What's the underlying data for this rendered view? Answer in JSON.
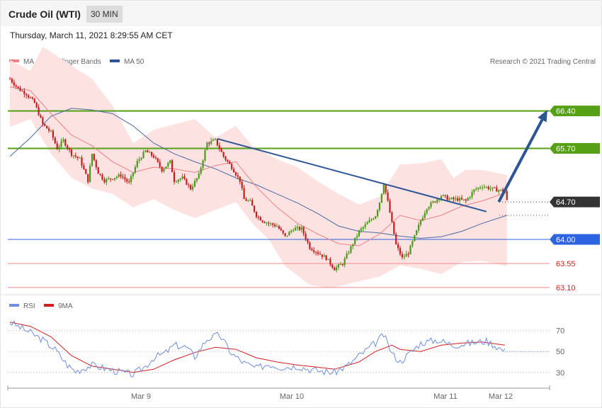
{
  "header": {
    "title": "Crude Oil (WTI)",
    "timeframe": "30 MIN",
    "datetime": "Thursday, March 11, 2021 8:29:55 AM CET"
  },
  "legend": {
    "ma20": "MA 20 + Bollinger Bands",
    "ma50": "MA 50",
    "copyright": "Research © 2021 Trading Central",
    "rsi": "RSI",
    "rsi_ma": "9MA"
  },
  "colors": {
    "up": "#4a9a1a",
    "down": "#c21e1e",
    "band": "#fde2e2",
    "ma20": "#f08080",
    "ma50": "#4a6aa0",
    "trend": "#2e5593",
    "resistance": "#55a014",
    "support": "#2b63e0",
    "weak_support": "#f08a8a",
    "pivot": "#333333",
    "rsi": "#6f8ee0",
    "rsi_ma": "#d21e1e"
  },
  "chart_data": [
    {
      "type": "candlestick",
      "ylim": [
        62.98,
        67.68
      ],
      "x_ticks": [
        "Mar 9",
        "Mar 10",
        "Mar 11",
        "Mar 12"
      ],
      "close_path": [
        [
          0,
          67.0
        ],
        [
          4,
          66.82
        ],
        [
          8,
          66.72
        ],
        [
          12,
          66.55
        ],
        [
          16,
          66.15
        ],
        [
          20,
          66.0
        ],
        [
          23,
          65.7
        ],
        [
          26,
          65.85
        ],
        [
          30,
          65.6
        ],
        [
          34,
          65.5
        ],
        [
          38,
          65.1
        ],
        [
          40,
          65.6
        ],
        [
          43,
          65.25
        ],
        [
          46,
          65.1
        ],
        [
          50,
          65.15
        ],
        [
          54,
          65.2
        ],
        [
          58,
          65.05
        ],
        [
          62,
          65.45
        ],
        [
          66,
          65.65
        ],
        [
          70,
          65.55
        ],
        [
          74,
          65.3
        ],
        [
          78,
          65.45
        ],
        [
          80,
          65.1
        ],
        [
          84,
          65.15
        ],
        [
          88,
          64.95
        ],
        [
          92,
          65.2
        ],
        [
          96,
          65.8
        ],
        [
          100,
          65.85
        ],
        [
          104,
          65.55
        ],
        [
          108,
          65.35
        ],
        [
          112,
          65.1
        ],
        [
          114,
          64.75
        ],
        [
          117,
          64.7
        ],
        [
          120,
          64.45
        ],
        [
          123,
          64.35
        ],
        [
          126,
          64.3
        ],
        [
          130,
          64.25
        ],
        [
          134,
          64.05
        ],
        [
          138,
          64.2
        ],
        [
          142,
          64.2
        ],
        [
          146,
          63.85
        ],
        [
          150,
          63.75
        ],
        [
          154,
          63.65
        ],
        [
          158,
          63.45
        ],
        [
          162,
          63.55
        ],
        [
          166,
          63.85
        ],
        [
          170,
          64.15
        ],
        [
          174,
          64.3
        ],
        [
          178,
          64.45
        ],
        [
          180,
          64.7
        ],
        [
          182,
          65.05
        ],
        [
          184,
          64.7
        ],
        [
          186,
          64.3
        ],
        [
          188,
          63.9
        ],
        [
          191,
          63.65
        ],
        [
          194,
          63.75
        ],
        [
          196,
          63.95
        ],
        [
          200,
          64.35
        ],
        [
          203,
          64.6
        ],
        [
          207,
          64.72
        ],
        [
          210,
          64.82
        ],
        [
          214,
          64.75
        ],
        [
          218,
          64.75
        ],
        [
          222,
          64.72
        ],
        [
          226,
          64.92
        ],
        [
          230,
          65.0
        ],
        [
          234,
          64.95
        ],
        [
          238,
          64.92
        ],
        [
          241,
          64.9
        ],
        [
          242,
          64.72
        ]
      ],
      "ma20_path": [
        [
          0,
          66.85
        ],
        [
          10,
          66.78
        ],
        [
          20,
          66.35
        ],
        [
          30,
          65.95
        ],
        [
          40,
          65.75
        ],
        [
          50,
          65.45
        ],
        [
          60,
          65.25
        ],
        [
          70,
          65.35
        ],
        [
          80,
          65.32
        ],
        [
          90,
          65.25
        ],
        [
          100,
          65.38
        ],
        [
          110,
          65.45
        ],
        [
          120,
          64.98
        ],
        [
          130,
          64.6
        ],
        [
          140,
          64.3
        ],
        [
          150,
          64.1
        ],
        [
          160,
          63.92
        ],
        [
          170,
          63.88
        ],
        [
          180,
          64.1
        ],
        [
          190,
          64.45
        ],
        [
          200,
          64.35
        ],
        [
          210,
          64.45
        ],
        [
          220,
          64.62
        ],
        [
          230,
          64.72
        ],
        [
          242,
          64.88
        ]
      ],
      "ma50_path": [
        [
          0,
          65.55
        ],
        [
          10,
          65.9
        ],
        [
          20,
          66.3
        ],
        [
          30,
          66.45
        ],
        [
          40,
          66.42
        ],
        [
          50,
          66.35
        ],
        [
          60,
          66.12
        ],
        [
          70,
          65.8
        ],
        [
          80,
          65.6
        ],
        [
          90,
          65.45
        ],
        [
          100,
          65.32
        ],
        [
          110,
          65.15
        ],
        [
          120,
          65.02
        ],
        [
          130,
          64.85
        ],
        [
          140,
          64.68
        ],
        [
          150,
          64.48
        ],
        [
          160,
          64.25
        ],
        [
          170,
          64.15
        ],
        [
          180,
          64.12
        ],
        [
          190,
          64.06
        ],
        [
          200,
          64.02
        ],
        [
          210,
          64.05
        ],
        [
          220,
          64.15
        ],
        [
          230,
          64.3
        ],
        [
          242,
          64.45
        ]
      ],
      "band_upper": [
        [
          0,
          67.35
        ],
        [
          10,
          67.15
        ],
        [
          16,
          67.6
        ],
        [
          30,
          67.25
        ],
        [
          40,
          67.0
        ],
        [
          50,
          66.5
        ],
        [
          60,
          65.8
        ],
        [
          70,
          66.05
        ],
        [
          80,
          66.15
        ],
        [
          90,
          66.25
        ],
        [
          100,
          65.9
        ],
        [
          110,
          66.12
        ],
        [
          118,
          65.75
        ],
        [
          130,
          65.5
        ],
        [
          140,
          65.35
        ],
        [
          150,
          65.08
        ],
        [
          160,
          64.85
        ],
        [
          170,
          64.65
        ],
        [
          180,
          64.8
        ],
        [
          190,
          65.4
        ],
        [
          200,
          65.42
        ],
        [
          210,
          65.5
        ],
        [
          216,
          65.15
        ],
        [
          222,
          65.3
        ],
        [
          230,
          65.3
        ],
        [
          242,
          65.2
        ]
      ],
      "band_lower": [
        [
          0,
          66.1
        ],
        [
          10,
          66.25
        ],
        [
          20,
          65.6
        ],
        [
          30,
          65.15
        ],
        [
          40,
          64.95
        ],
        [
          50,
          64.85
        ],
        [
          60,
          64.6
        ],
        [
          70,
          64.75
        ],
        [
          80,
          64.55
        ],
        [
          90,
          64.4
        ],
        [
          100,
          64.55
        ],
        [
          110,
          64.7
        ],
        [
          118,
          64.3
        ],
        [
          126,
          64.0
        ],
        [
          134,
          63.5
        ],
        [
          146,
          63.15
        ],
        [
          156,
          63.08
        ],
        [
          168,
          63.2
        ],
        [
          180,
          63.3
        ],
        [
          190,
          63.52
        ],
        [
          200,
          63.45
        ],
        [
          210,
          63.35
        ],
        [
          220,
          63.58
        ],
        [
          230,
          63.6
        ],
        [
          242,
          63.5
        ]
      ],
      "trendline": [
        [
          101,
          65.88
        ],
        [
          232,
          64.52
        ]
      ],
      "forecast": [
        [
          238,
          64.7
        ],
        [
          262,
          66.4
        ]
      ],
      "levels": [
        {
          "value": 66.4,
          "label": "66.40",
          "kind": "resistance"
        },
        {
          "value": 65.7,
          "label": "65.70",
          "kind": "resistance"
        },
        {
          "value": 64.7,
          "label": "64.70",
          "kind": "pivot"
        },
        {
          "value": 64.0,
          "label": "64.00",
          "kind": "support"
        },
        {
          "value": 63.55,
          "label": "63.55",
          "kind": "weak_support"
        },
        {
          "value": 63.1,
          "label": "63.10",
          "kind": "weak_support"
        }
      ]
    },
    {
      "type": "line",
      "name": "RSI",
      "ylim": [
        17,
        88
      ],
      "y_ticks": [
        70,
        50,
        30
      ],
      "rsi_path": [
        [
          0,
          78
        ],
        [
          5,
          73
        ],
        [
          10,
          68
        ],
        [
          16,
          61
        ],
        [
          22,
          52
        ],
        [
          28,
          37
        ],
        [
          32,
          31
        ],
        [
          40,
          37
        ],
        [
          50,
          32
        ],
        [
          60,
          28
        ],
        [
          66,
          36
        ],
        [
          70,
          44
        ],
        [
          76,
          49
        ],
        [
          80,
          56
        ],
        [
          86,
          54
        ],
        [
          90,
          45
        ],
        [
          96,
          62
        ],
        [
          102,
          66
        ],
        [
          108,
          48
        ],
        [
          114,
          39
        ],
        [
          120,
          34
        ],
        [
          126,
          38
        ],
        [
          132,
          35
        ],
        [
          140,
          36
        ],
        [
          146,
          33
        ],
        [
          152,
          31
        ],
        [
          158,
          30
        ],
        [
          164,
          36
        ],
        [
          170,
          46
        ],
        [
          178,
          58
        ],
        [
          182,
          66
        ],
        [
          186,
          48
        ],
        [
          190,
          40
        ],
        [
          200,
          58
        ],
        [
          208,
          61
        ],
        [
          216,
          56
        ],
        [
          224,
          58
        ],
        [
          232,
          60
        ],
        [
          236,
          56
        ],
        [
          241,
          50
        ]
      ],
      "rsi_ma_path": [
        [
          0,
          78
        ],
        [
          10,
          74
        ],
        [
          20,
          64
        ],
        [
          30,
          46
        ],
        [
          40,
          36
        ],
        [
          50,
          33
        ],
        [
          60,
          30
        ],
        [
          70,
          33
        ],
        [
          80,
          42
        ],
        [
          90,
          49
        ],
        [
          100,
          54
        ],
        [
          110,
          52
        ],
        [
          120,
          44
        ],
        [
          130,
          40
        ],
        [
          140,
          37
        ],
        [
          150,
          35
        ],
        [
          158,
          33
        ],
        [
          170,
          40
        ],
        [
          178,
          50
        ],
        [
          186,
          56
        ],
        [
          190,
          52
        ],
        [
          200,
          50
        ],
        [
          210,
          56
        ],
        [
          220,
          58
        ],
        [
          230,
          59
        ],
        [
          241,
          56
        ]
      ]
    }
  ]
}
